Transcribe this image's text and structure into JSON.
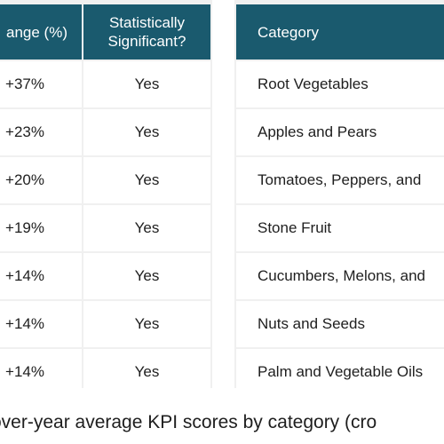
{
  "left_table": {
    "headers": {
      "change": "ange (%)",
      "significant": "Statistically\nSignificant?"
    },
    "rows": [
      {
        "change": "+37%",
        "significant": "Yes"
      },
      {
        "change": "+23%",
        "significant": "Yes"
      },
      {
        "change": "+20%",
        "significant": "Yes"
      },
      {
        "change": "+19%",
        "significant": "Yes"
      },
      {
        "change": "+14%",
        "significant": "Yes"
      },
      {
        "change": "+14%",
        "significant": "Yes"
      },
      {
        "change": "+14%",
        "significant": "Yes"
      }
    ]
  },
  "right_table": {
    "headers": {
      "category": "Category"
    },
    "rows": [
      {
        "category": "Root Vegetables"
      },
      {
        "category": "Apples and Pears"
      },
      {
        "category": "Tomatoes, Peppers, and"
      },
      {
        "category": "Stone Fruit"
      },
      {
        "category": "Cucumbers, Melons, and"
      },
      {
        "category": "Nuts and Seeds"
      },
      {
        "category": "Palm and Vegetable Oils"
      }
    ]
  },
  "caption": "over-year average KPI scores by category (cro",
  "colors": {
    "header_bg": "#1a5a6e",
    "header_text": "#ffffff",
    "grid_bg": "#f0f0f0",
    "cell_bg": "#ffffff"
  }
}
